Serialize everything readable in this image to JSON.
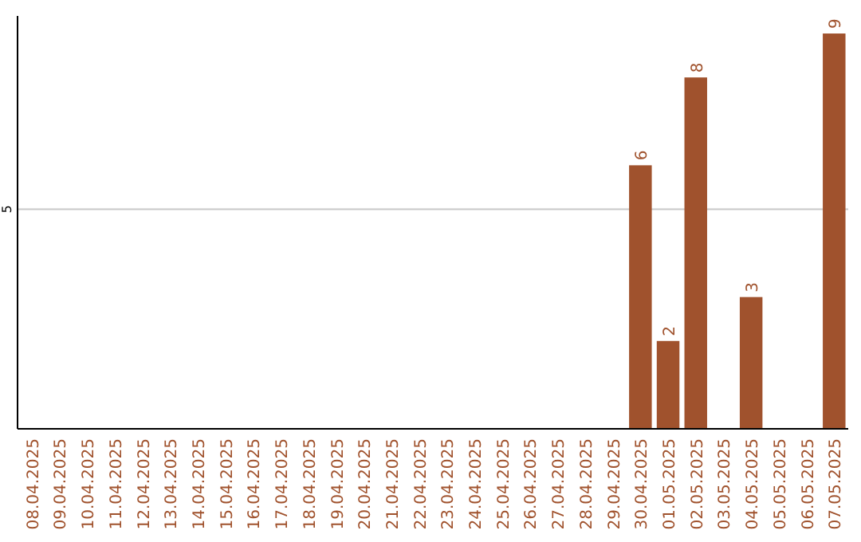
{
  "chart_data": {
    "type": "bar",
    "categories": [
      "08.04.2025",
      "09.04.2025",
      "10.04.2025",
      "11.04.2025",
      "12.04.2025",
      "13.04.2025",
      "14.04.2025",
      "15.04.2025",
      "16.04.2025",
      "17.04.2025",
      "18.04.2025",
      "19.04.2025",
      "20.04.2025",
      "21.04.2025",
      "22.04.2025",
      "23.04.2025",
      "24.04.2025",
      "25.04.2025",
      "26.04.2025",
      "27.04.2025",
      "28.04.2025",
      "29.04.2025",
      "30.04.2025",
      "01.05.2025",
      "02.05.2025",
      "03.05.2025",
      "04.05.2025",
      "05.05.2025",
      "06.05.2025",
      "07.05.2025"
    ],
    "values": [
      null,
      null,
      null,
      null,
      null,
      null,
      null,
      null,
      null,
      null,
      null,
      null,
      null,
      null,
      null,
      null,
      null,
      null,
      null,
      null,
      null,
      null,
      6,
      2,
      8,
      null,
      3,
      null,
      null,
      9
    ],
    "color": "#a0522d",
    "ylim": [
      0,
      9.4
    ],
    "yticks": [
      5
    ],
    "grid": "y",
    "data_labels": true
  }
}
